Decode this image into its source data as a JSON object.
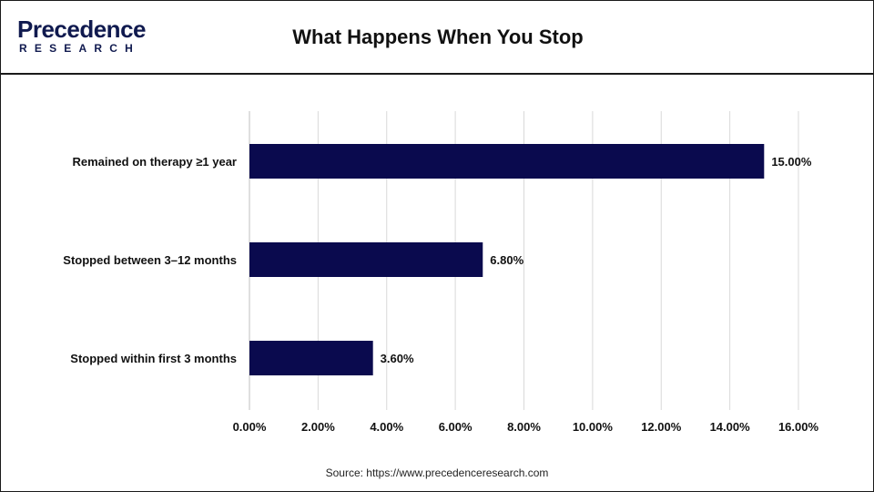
{
  "header": {
    "logo_main": "Precedence",
    "logo_sub": "RESEARCH",
    "title": "What Happens When You Stop"
  },
  "chart_data": {
    "type": "bar",
    "orientation": "horizontal",
    "categories": [
      "Remained on therapy ≥1 year",
      "Stopped between 3–12 months",
      "Stopped within first 3 months"
    ],
    "values": [
      15.0,
      6.8,
      3.6
    ],
    "value_labels": [
      "15.00%",
      "6.80%",
      "3.60%"
    ],
    "xlim": [
      0,
      16
    ],
    "xticks": [
      0,
      2,
      4,
      6,
      8,
      10,
      12,
      14,
      16
    ],
    "xtick_labels": [
      "0.00%",
      "2.00%",
      "4.00%",
      "6.00%",
      "8.00%",
      "10.00%",
      "12.00%",
      "14.00%",
      "16.00%"
    ],
    "grid": "vertical",
    "bar_color": "#0a0a4e"
  },
  "footer": {
    "source": "Source: https://www.precedenceresearch.com"
  }
}
